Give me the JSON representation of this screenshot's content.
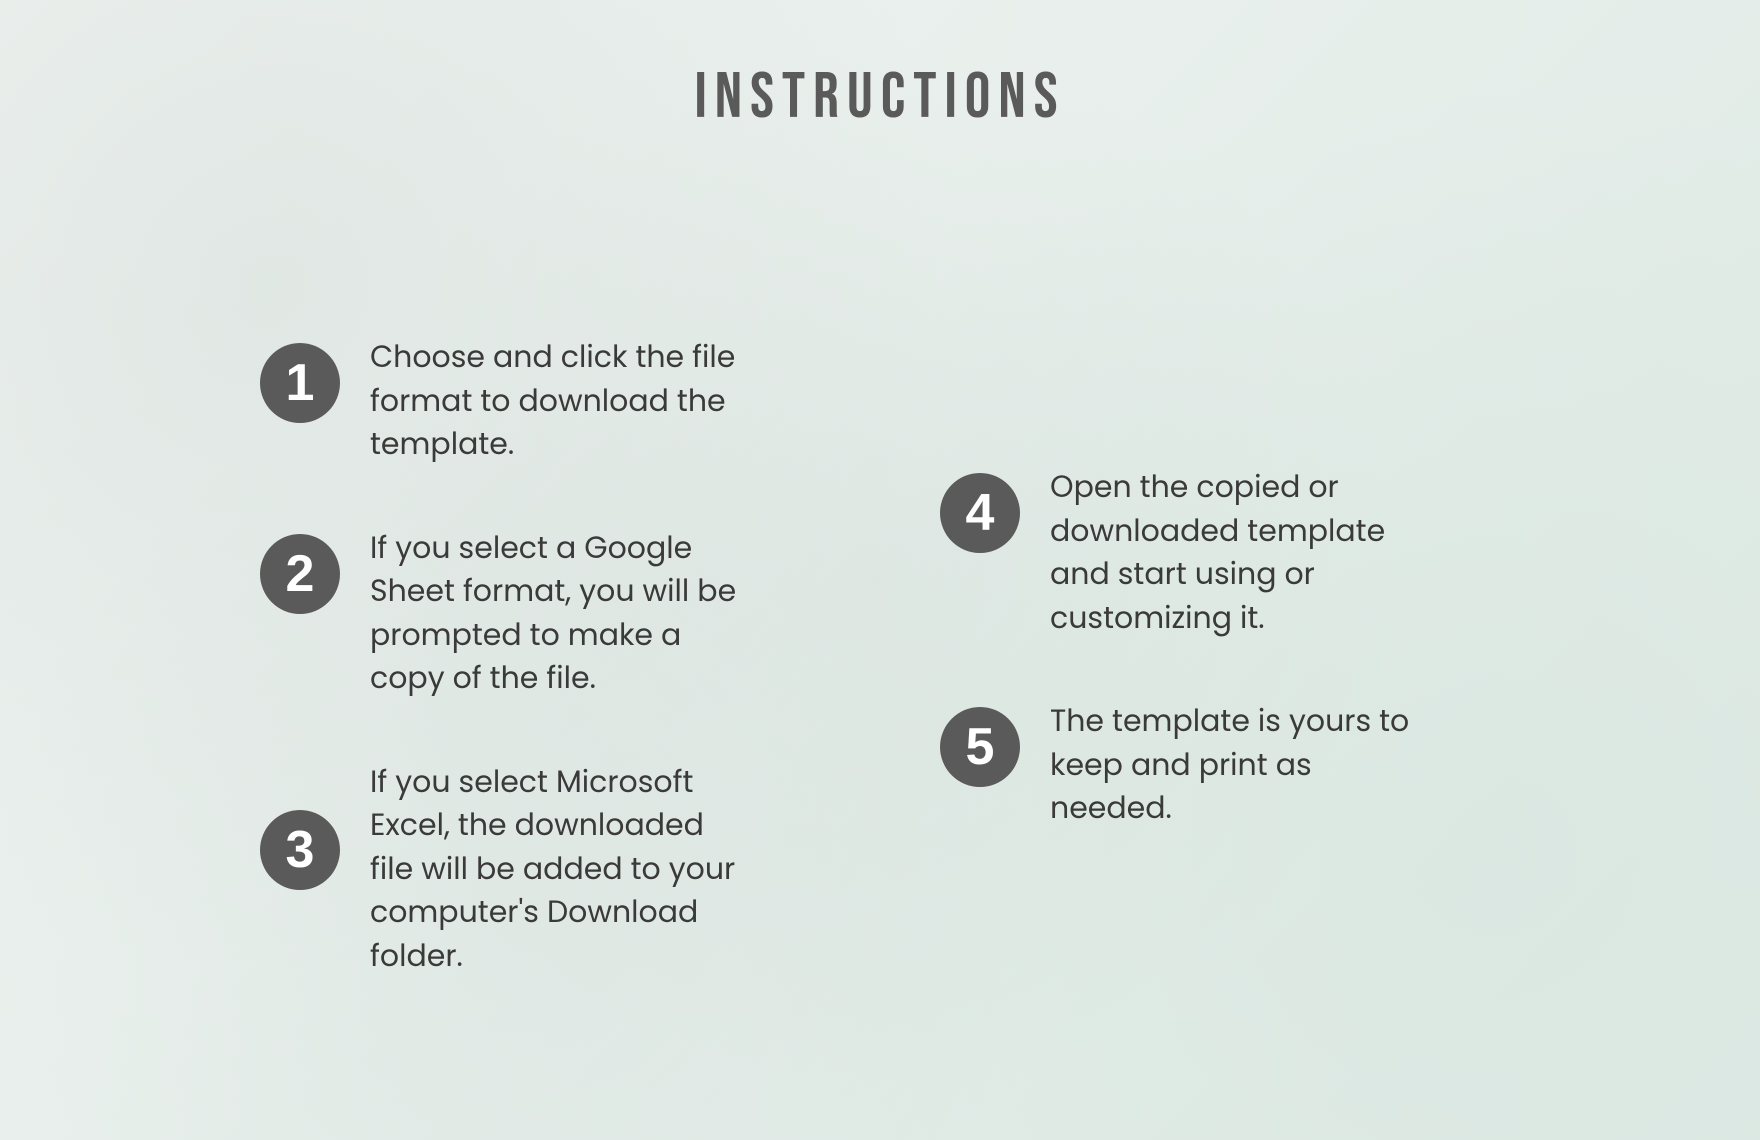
{
  "title": "INSTRUCTIONS",
  "colors": {
    "title_color": "#5a5a5a",
    "badge_bg": "#5a5a5a",
    "badge_text": "#ffffff",
    "body_text": "#3a3a3a",
    "bg_gradient_start": "#eef2f0",
    "bg_gradient_end": "#dfeae5"
  },
  "typography": {
    "title_fontsize": 64,
    "title_letter_spacing": 8,
    "body_fontsize": 30,
    "badge_fontsize": 52,
    "badge_diameter": 80
  },
  "steps": {
    "left": [
      {
        "num": "1",
        "text": "Choose and click the file format to download the template."
      },
      {
        "num": "2",
        "text": "If you select a Google Sheet format, you will be prompted to make a copy of the file."
      },
      {
        "num": "3",
        "text": "If you select Microsoft Excel, the downloaded file will be added to your computer's Download  folder."
      }
    ],
    "right": [
      {
        "num": "4",
        "text": "Open the copied or downloaded template and start using or customizing it."
      },
      {
        "num": "5",
        "text": "The template is yours to keep and print as needed."
      }
    ]
  }
}
